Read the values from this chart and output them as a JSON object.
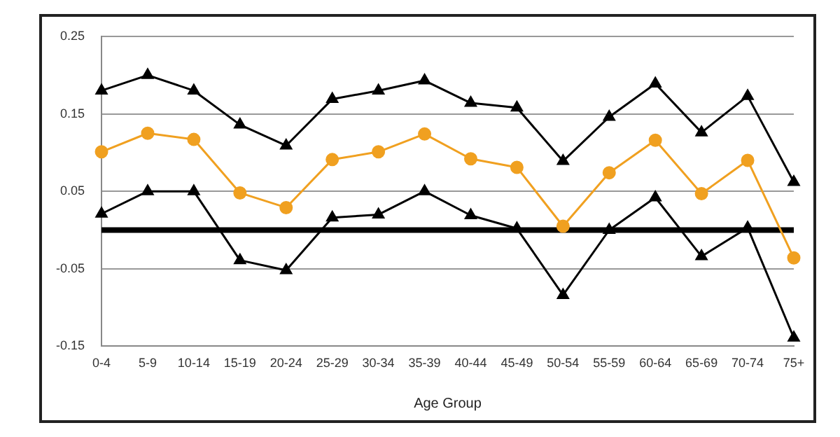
{
  "chart_data": {
    "type": "line",
    "xlabel": "Age Group",
    "categories": [
      "0-4",
      "5-9",
      "10-14",
      "15-19",
      "20-24",
      "25-29",
      "30-34",
      "35-39",
      "40-44",
      "45-49",
      "50-54",
      "55-59",
      "60-64",
      "65-69",
      "70-74",
      "75+"
    ],
    "series": [
      {
        "color": "#000000",
        "marker": "triangle",
        "values": [
          0.18,
          0.2,
          0.18,
          0.136,
          0.109,
          0.169,
          0.18,
          0.193,
          0.164,
          0.158,
          0.089,
          0.146,
          0.189,
          0.126,
          0.173,
          0.062
        ]
      },
      {
        "color": "#f0a020",
        "marker": "circle",
        "values": [
          0.101,
          0.125,
          0.117,
          0.048,
          0.029,
          0.091,
          0.101,
          0.124,
          0.092,
          0.081,
          0.005,
          0.074,
          0.116,
          0.047,
          0.09,
          -0.036
        ]
      },
      {
        "color": "#000000",
        "marker": "triangle",
        "values": [
          0.021,
          0.05,
          0.05,
          -0.039,
          -0.052,
          0.016,
          0.02,
          0.05,
          0.019,
          0.002,
          -0.084,
          0,
          0.042,
          -0.034,
          0.003,
          -0.139
        ]
      }
    ],
    "ylim": [
      -0.15,
      0.25
    ],
    "yticks": [
      -0.15,
      -0.05,
      0.05,
      0.15,
      0.25
    ],
    "grid": "y",
    "legend": false,
    "ref_lines": [
      {
        "axis": "y",
        "value": 0,
        "color": "#000000"
      }
    ]
  }
}
